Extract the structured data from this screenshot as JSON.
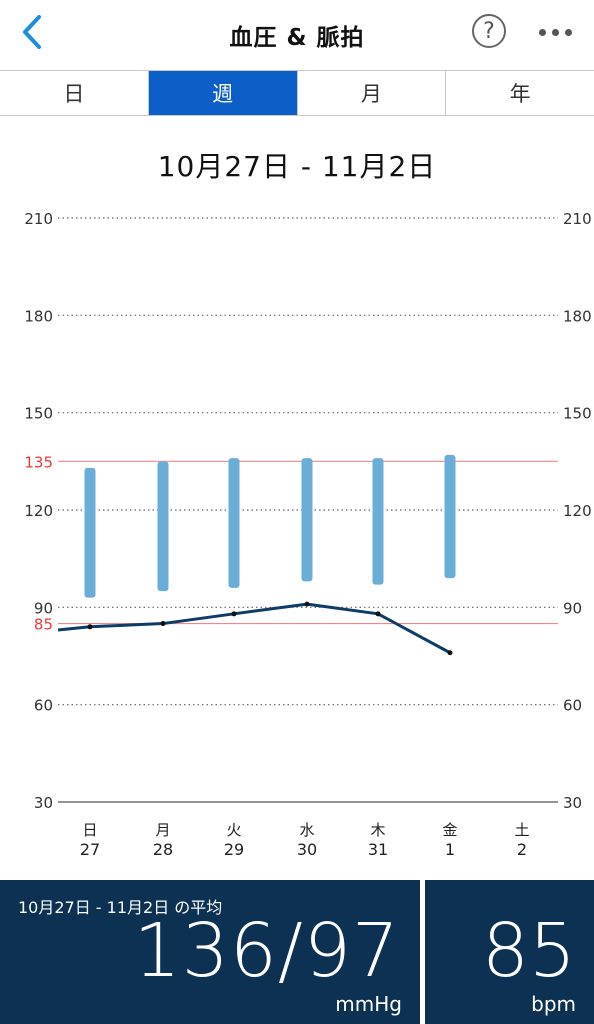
{
  "header": {
    "title": "血圧 & 脈拍",
    "help_label": "?"
  },
  "tabs": [
    {
      "label": "日",
      "active": false
    },
    {
      "label": "週",
      "active": true
    },
    {
      "label": "月",
      "active": false
    },
    {
      "label": "年",
      "active": false
    }
  ],
  "date_range": "10月27日 - 11月2日",
  "chart_data": {
    "type": "bar",
    "ylim": [
      30,
      210
    ],
    "yticks": [
      30,
      60,
      90,
      120,
      150,
      180,
      210
    ],
    "reference_lines": [
      {
        "value": 135,
        "label": "135",
        "color": "#e83a3a"
      },
      {
        "value": 85,
        "label": "85",
        "color": "#e83a3a"
      }
    ],
    "days": [
      {
        "weekday": "日",
        "date": "27"
      },
      {
        "weekday": "月",
        "date": "28"
      },
      {
        "weekday": "火",
        "date": "29"
      },
      {
        "weekday": "水",
        "date": "30"
      },
      {
        "weekday": "木",
        "date": "31"
      },
      {
        "weekday": "金",
        "date": "1"
      },
      {
        "weekday": "土",
        "date": "2"
      }
    ],
    "series": [
      {
        "type": "range_bar",
        "color": "#6aaed8",
        "values": [
          {
            "high": 133,
            "low": 93
          },
          {
            "high": 135,
            "low": 95
          },
          {
            "high": 136,
            "low": 96
          },
          {
            "high": 136,
            "low": 98
          },
          {
            "high": 136,
            "low": 97
          },
          {
            "high": 137,
            "low": 99
          },
          null
        ]
      },
      {
        "type": "line",
        "color": "#0d3c66",
        "values": [
          84,
          85,
          88,
          91,
          88,
          76,
          null
        ],
        "start_value": 83
      }
    ]
  },
  "summary": {
    "avg_label": "10月27日 - 11月2日 の平均",
    "bp_value": "136/97",
    "bp_unit": "mmHg",
    "pulse_value": "85",
    "pulse_unit": "bpm"
  },
  "colors": {
    "accent": "#0b5fc6",
    "back_arrow": "#1a8fe0",
    "summary_bg": "#0c3152"
  }
}
